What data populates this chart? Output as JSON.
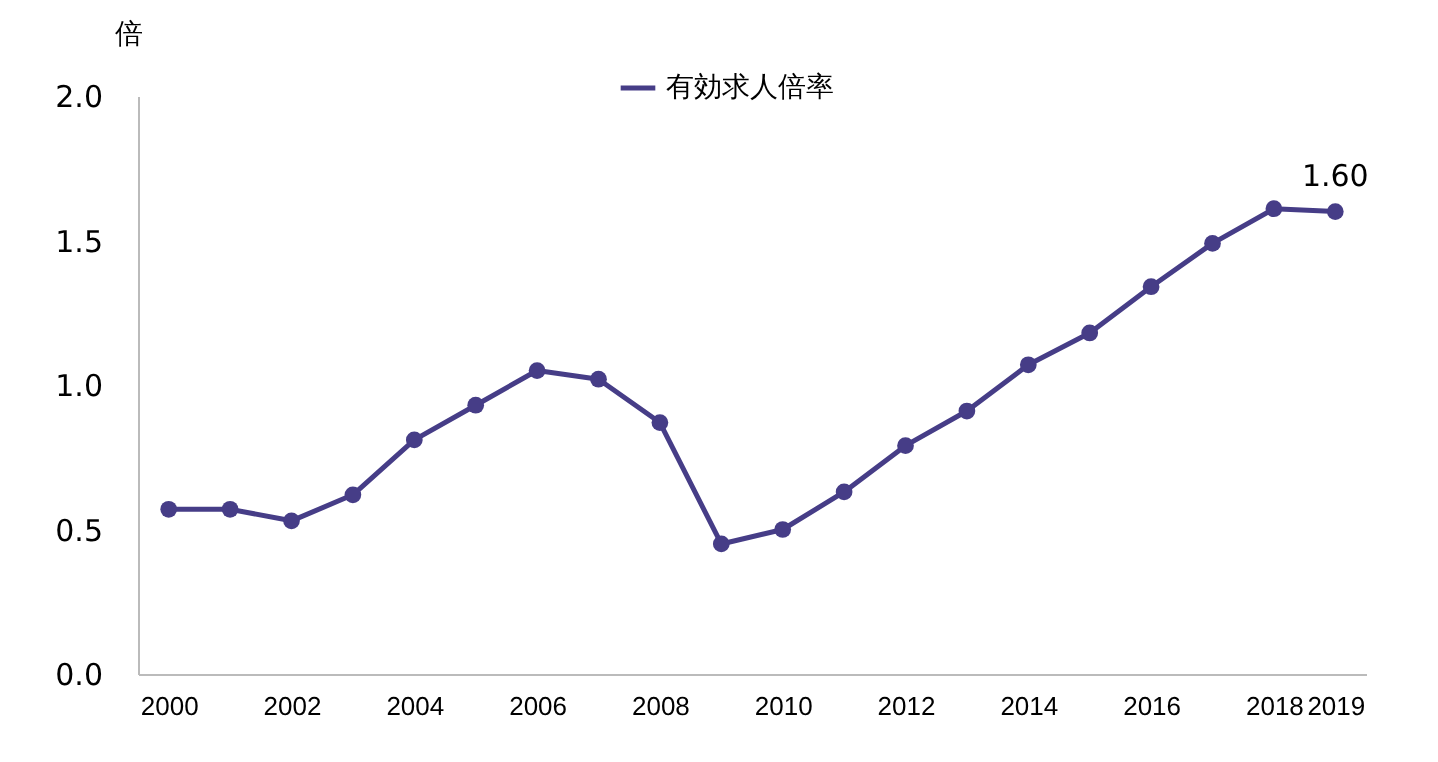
{
  "chart_data": {
    "type": "line",
    "ylabel": "倍",
    "x": [
      2000,
      2001,
      2002,
      2003,
      2004,
      2005,
      2006,
      2007,
      2008,
      2009,
      2010,
      2011,
      2012,
      2013,
      2014,
      2015,
      2016,
      2017,
      2018,
      2019
    ],
    "series": [
      {
        "name": "有効求人倍率",
        "color": "#463d87",
        "values": [
          0.57,
          0.57,
          0.53,
          0.62,
          0.81,
          0.93,
          1.05,
          1.02,
          0.87,
          0.45,
          0.5,
          0.63,
          0.79,
          0.91,
          1.07,
          1.18,
          1.34,
          1.49,
          1.61,
          1.6
        ],
        "value_labels": [
          null,
          null,
          null,
          null,
          null,
          null,
          null,
          null,
          null,
          null,
          null,
          null,
          null,
          null,
          null,
          null,
          null,
          null,
          null,
          "1.60"
        ]
      }
    ],
    "xlim": [
      1999.5,
      2019.5
    ],
    "xticks": [
      2000,
      2002,
      2004,
      2006,
      2008,
      2010,
      2012,
      2014,
      2016,
      2018,
      2019
    ],
    "ylim": [
      0,
      2
    ],
    "yticks": [
      {
        "value": 0,
        "label": "0.0"
      },
      {
        "value": 0.5,
        "label": "0.5"
      },
      {
        "value": 1,
        "label": "1.0"
      },
      {
        "value": 1.5,
        "label": "1.5"
      },
      {
        "value": 2,
        "label": "2.0"
      }
    ],
    "grid": false,
    "legend": "top",
    "marker": "circle",
    "line_style": "solid"
  }
}
